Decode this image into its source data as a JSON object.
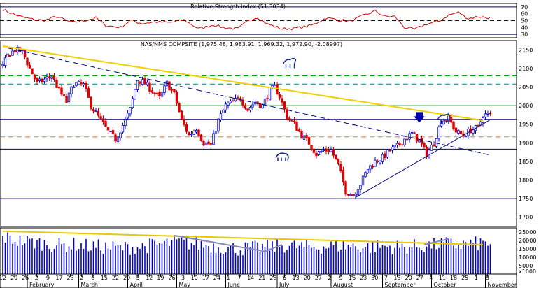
{
  "colors": {
    "up": "#0000dd",
    "down": "#dd0000",
    "rsi": "#cc0000",
    "trend_yellow": "#f0d000",
    "trend_blue": "#000080",
    "volume_blue": "#0000cc",
    "volume_trend_yellow": "#e8c800",
    "volume_trend_gray": "#8888bb",
    "level_navy": "#000070",
    "level_orange": "#e08030",
    "level_green": "#00a000",
    "level_teal": "#008080",
    "frame": "#000000"
  },
  "chart_data": [
    {
      "type": "line",
      "panel": "rsi",
      "title": "Relative Strength Index (51.3034)",
      "ylim": [
        25,
        75
      ],
      "ytick_labels": [
        "70",
        "60",
        "50",
        "40",
        "30"
      ],
      "yticks": [
        70,
        60,
        50,
        40,
        30
      ],
      "reference_levels": [
        {
          "value": 70,
          "color": "#000070",
          "style": "solid"
        },
        {
          "value": 50,
          "color": "#000070",
          "style": "dashed"
        },
        {
          "value": 30,
          "color": "#000070",
          "style": "solid"
        }
      ],
      "anchors": [
        [
          0,
          66
        ],
        [
          4,
          60
        ],
        [
          8,
          55
        ],
        [
          12,
          52
        ],
        [
          17,
          50
        ],
        [
          22,
          56
        ],
        [
          28,
          47
        ],
        [
          33,
          50
        ],
        [
          38,
          54
        ],
        [
          42,
          43
        ],
        [
          48,
          40
        ],
        [
          52,
          50
        ],
        [
          57,
          46
        ],
        [
          62,
          48
        ],
        [
          68,
          47
        ],
        [
          74,
          51
        ],
        [
          80,
          38
        ],
        [
          86,
          44
        ],
        [
          90,
          40
        ],
        [
          96,
          38
        ],
        [
          101,
          52
        ],
        [
          104,
          55
        ],
        [
          108,
          45
        ],
        [
          114,
          38
        ],
        [
          120,
          39
        ],
        [
          126,
          43
        ],
        [
          132,
          54
        ],
        [
          137,
          51
        ],
        [
          142,
          49
        ],
        [
          147,
          57
        ],
        [
          152,
          64
        ],
        [
          156,
          56
        ],
        [
          160,
          56
        ],
        [
          164,
          40
        ],
        [
          168,
          37
        ],
        [
          173,
          45
        ],
        [
          178,
          49
        ],
        [
          182,
          58
        ],
        [
          186,
          62
        ],
        [
          190,
          53
        ],
        [
          194,
          56
        ],
        [
          199,
          54
        ]
      ]
    },
    {
      "type": "candlestick",
      "panel": "price",
      "title": "NAS/NMS COMPSITE (1,975.48, 1,983.91, 1,969.32, 1,972.90, -2.08997)",
      "ylim": [
        1675,
        2175
      ],
      "ytick_labels": [
        "2150",
        "2100",
        "2050",
        "2000",
        "1950",
        "1900",
        "1850",
        "1800",
        "1750",
        "1700"
      ],
      "yticks": [
        2150,
        2100,
        2050,
        2000,
        1950,
        1900,
        1850,
        1800,
        1750,
        1700
      ],
      "horizontal_levels": [
        {
          "value": 2080,
          "color": "#00a000",
          "style": "dashed"
        },
        {
          "value": 2058,
          "color": "#008080",
          "style": "dashed"
        },
        {
          "value": 2000,
          "color": "#00a000",
          "style": "solid"
        },
        {
          "value": 1963,
          "color": "#000070",
          "style": "solid"
        },
        {
          "value": 1916,
          "color": "#e08030",
          "style": "dashed"
        },
        {
          "value": 1883,
          "color": "#000070",
          "style": "solid"
        },
        {
          "value": 1750,
          "color": "#000070",
          "style": "solid"
        }
      ],
      "trendlines": [
        {
          "name": "",
          "color": "#f0d000",
          "from": [
            0,
            2160
          ],
          "to": [
            196,
            1960
          ],
          "width": 2
        },
        {
          "name": "",
          "color": "#000080",
          "from": [
            2,
            2155
          ],
          "to": [
            199,
            1867
          ],
          "style": "dashed"
        },
        {
          "name": "",
          "color": "#000080",
          "from": [
            144,
            1753
          ],
          "to": [
            199,
            1962
          ],
          "style": "solid"
        }
      ],
      "price_anchors": [
        [
          0,
          2105
        ],
        [
          2,
          2135
        ],
        [
          5,
          2150
        ],
        [
          8,
          2145
        ],
        [
          11,
          2100
        ],
        [
          14,
          2060
        ],
        [
          17,
          2070
        ],
        [
          20,
          2080
        ],
        [
          23,
          2040
        ],
        [
          26,
          2010
        ],
        [
          29,
          2060
        ],
        [
          33,
          2055
        ],
        [
          36,
          2000
        ],
        [
          40,
          1960
        ],
        [
          43,
          1930
        ],
        [
          46,
          1910
        ],
        [
          50,
          1960
        ],
        [
          52,
          1990
        ],
        [
          55,
          2070
        ],
        [
          58,
          2060
        ],
        [
          61,
          2040
        ],
        [
          64,
          2020
        ],
        [
          67,
          2060
        ],
        [
          70,
          2030
        ],
        [
          73,
          1960
        ],
        [
          76,
          1920
        ],
        [
          79,
          1940
        ],
        [
          82,
          1900
        ],
        [
          85,
          1895
        ],
        [
          88,
          1960
        ],
        [
          91,
          2000
        ],
        [
          94,
          2010
        ],
        [
          97,
          2020
        ],
        [
          100,
          1990
        ],
        [
          103,
          2010
        ],
        [
          106,
          2000
        ],
        [
          109,
          2040
        ],
        [
          111,
          2050
        ],
        [
          113,
          2025
        ],
        [
          116,
          1970
        ],
        [
          119,
          1950
        ],
        [
          122,
          1920
        ],
        [
          125,
          1900
        ],
        [
          128,
          1870
        ],
        [
          131,
          1880
        ],
        [
          134,
          1880
        ],
        [
          137,
          1840
        ],
        [
          140,
          1770
        ],
        [
          143,
          1760
        ],
        [
          146,
          1790
        ],
        [
          149,
          1830
        ],
        [
          152,
          1850
        ],
        [
          155,
          1860
        ],
        [
          158,
          1880
        ],
        [
          161,
          1890
        ],
        [
          164,
          1910
        ],
        [
          167,
          1925
        ],
        [
          170,
          1905
        ],
        [
          173,
          1870
        ],
        [
          176,
          1900
        ],
        [
          179,
          1960
        ],
        [
          182,
          1965
        ],
        [
          185,
          1930
        ],
        [
          188,
          1920
        ],
        [
          191,
          1935
        ],
        [
          194,
          1940
        ],
        [
          196,
          1975
        ],
        [
          198,
          1975
        ]
      ],
      "annotations": [
        {
          "symbol": "bull",
          "index": 117,
          "value": 2112
        },
        {
          "symbol": "bear",
          "index": 114,
          "value": 1860
        },
        {
          "symbol": "arrow-down",
          "index": 170,
          "value": 1945
        },
        {
          "symbol": "bull",
          "index": 180,
          "value": 1962
        }
      ],
      "x_tick_labels": [
        "12",
        "20",
        "26",
        "2",
        "9",
        "17",
        "23",
        "2",
        "8",
        "15",
        "22",
        "29",
        "5",
        "12",
        "19",
        "26",
        "3",
        "10",
        "17",
        "24",
        "1",
        "7",
        "14",
        "21",
        "28",
        "6",
        "13",
        "20",
        "27",
        "2",
        "9",
        "16",
        "23",
        "30",
        "7",
        "13",
        "20",
        "27",
        "4",
        "11",
        "18",
        "25",
        "1",
        "8"
      ],
      "month_labels": [
        "February",
        "March",
        "April",
        "May",
        "June",
        "July",
        "August",
        "September",
        "October",
        "November"
      ],
      "month_start_index": [
        10,
        31,
        51,
        71,
        91,
        112,
        134,
        155,
        175,
        197
      ]
    },
    {
      "type": "bar",
      "panel": "volume",
      "ylim": [
        0,
        27500
      ],
      "ytick_labels": [
        "25000",
        "20000",
        "15000",
        "10000",
        "5000",
        "x1000"
      ],
      "yticks": [
        25000,
        20000,
        15000,
        10000,
        5000
      ],
      "volume_anchors": [
        [
          0,
          22000
        ],
        [
          6,
          20000
        ],
        [
          12,
          19000
        ],
        [
          18,
          18000
        ],
        [
          24,
          17000
        ],
        [
          30,
          17500
        ],
        [
          36,
          16500
        ],
        [
          42,
          16000
        ],
        [
          48,
          15500
        ],
        [
          54,
          16000
        ],
        [
          60,
          17000
        ],
        [
          66,
          18000
        ],
        [
          72,
          19000
        ],
        [
          78,
          18000
        ],
        [
          84,
          17000
        ],
        [
          90,
          16000
        ],
        [
          96,
          15000
        ],
        [
          102,
          15500
        ],
        [
          108,
          16000
        ],
        [
          114,
          17000
        ],
        [
          120,
          16500
        ],
        [
          126,
          16000
        ],
        [
          132,
          16500
        ],
        [
          138,
          17000
        ],
        [
          144,
          16500
        ],
        [
          150,
          16000
        ],
        [
          156,
          16500
        ],
        [
          162,
          16000
        ],
        [
          168,
          16500
        ],
        [
          174,
          17000
        ],
        [
          180,
          18000
        ],
        [
          186,
          17500
        ],
        [
          192,
          18000
        ],
        [
          198,
          18500
        ]
      ],
      "trendlines": [
        {
          "color": "#e8c800",
          "from": [
            0,
            25500
          ],
          "to": [
            196,
            17500
          ]
        },
        {
          "color": "#8888bb",
          "from": [
            70,
            23000
          ],
          "to": [
            107,
            13500
          ]
        },
        {
          "color": "#8888bb",
          "from": [
            107,
            13500
          ],
          "to": [
            114,
            17500
          ]
        },
        {
          "color": "#8888bb",
          "from": [
            172,
            17500
          ],
          "to": [
            182,
            21000
          ]
        }
      ]
    }
  ]
}
